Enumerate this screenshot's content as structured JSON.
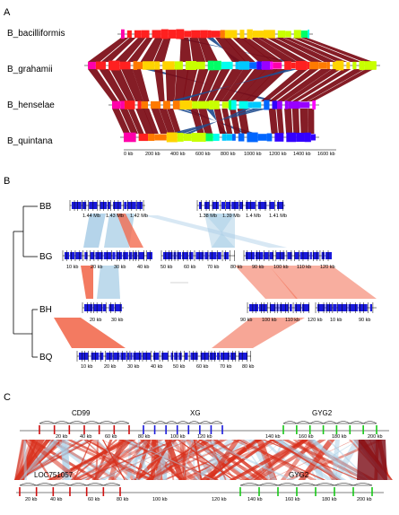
{
  "panels": {
    "a": "A",
    "b": "B",
    "c": "C"
  },
  "panel_a": {
    "genomes": [
      "B_bacilliformis",
      "B_grahamii",
      "B_henselae",
      "B_quintana"
    ],
    "axis_ticks": [
      "0 kb",
      "200 kb",
      "400 kb",
      "600 kb",
      "800 kb",
      "1000 kb",
      "1200 kb",
      "1400 kb",
      "1600 kb"
    ],
    "colors": {
      "link_direct": "#7b0a14",
      "link_inverted": "#1f4d8f"
    }
  },
  "panel_b": {
    "genomes": [
      "BB",
      "BG",
      "BH",
      "BQ"
    ],
    "bb_ticks": [
      "1.44 Mb",
      "1.43 Mb",
      "1.42 Mb",
      "1.38 Mb",
      "1.39 Mb",
      "1.4 Mb",
      "1.41 Mb"
    ],
    "bg_ticks": [
      "10 kb",
      "20 kb",
      "30 kb",
      "40 kb",
      "50 kb",
      "60 kb",
      "70 kb",
      "80 kb",
      "90 kb",
      "100 kb",
      "110 kb",
      "120 kb"
    ],
    "bh_ticks": [
      "20 kb",
      "30 kb",
      "90 kb",
      "100 kb",
      "110 kb",
      "120 kb",
      "10 kb",
      "90 kb"
    ],
    "bq_ticks": [
      "10 kb",
      "20 kb",
      "30 kb",
      "40 kb",
      "50 kb",
      "60 kb",
      "70 kb",
      "80 kb"
    ],
    "colors": {
      "gene": "#1a1adc",
      "link_direct": "#a8cde6",
      "link_inverted": "#f26b50"
    }
  },
  "panel_c": {
    "top_tracks": [
      "CD99",
      "XG",
      "GYG2"
    ],
    "top_ticks": [
      "20 kb",
      "40 kb",
      "60 kb",
      "80 kb",
      "100 kb",
      "120 kb",
      "140 kb",
      "160 kb",
      "180 kb",
      "200 kb"
    ],
    "bottom_tracks": [
      "LOC751057",
      "GYG2"
    ],
    "bottom_ticks": [
      "20 kb",
      "40 kb",
      "60 kb",
      "80 kb",
      "100 kb",
      "120 kb",
      "140 kb",
      "160 kb",
      "180 kb",
      "200 kb"
    ],
    "colors": {
      "cd99": "#d01010",
      "xg": "#1a1adc",
      "gyg2": "#18c818",
      "link_direct": "#d8301c",
      "link_inverted": "#a8cde6"
    }
  }
}
